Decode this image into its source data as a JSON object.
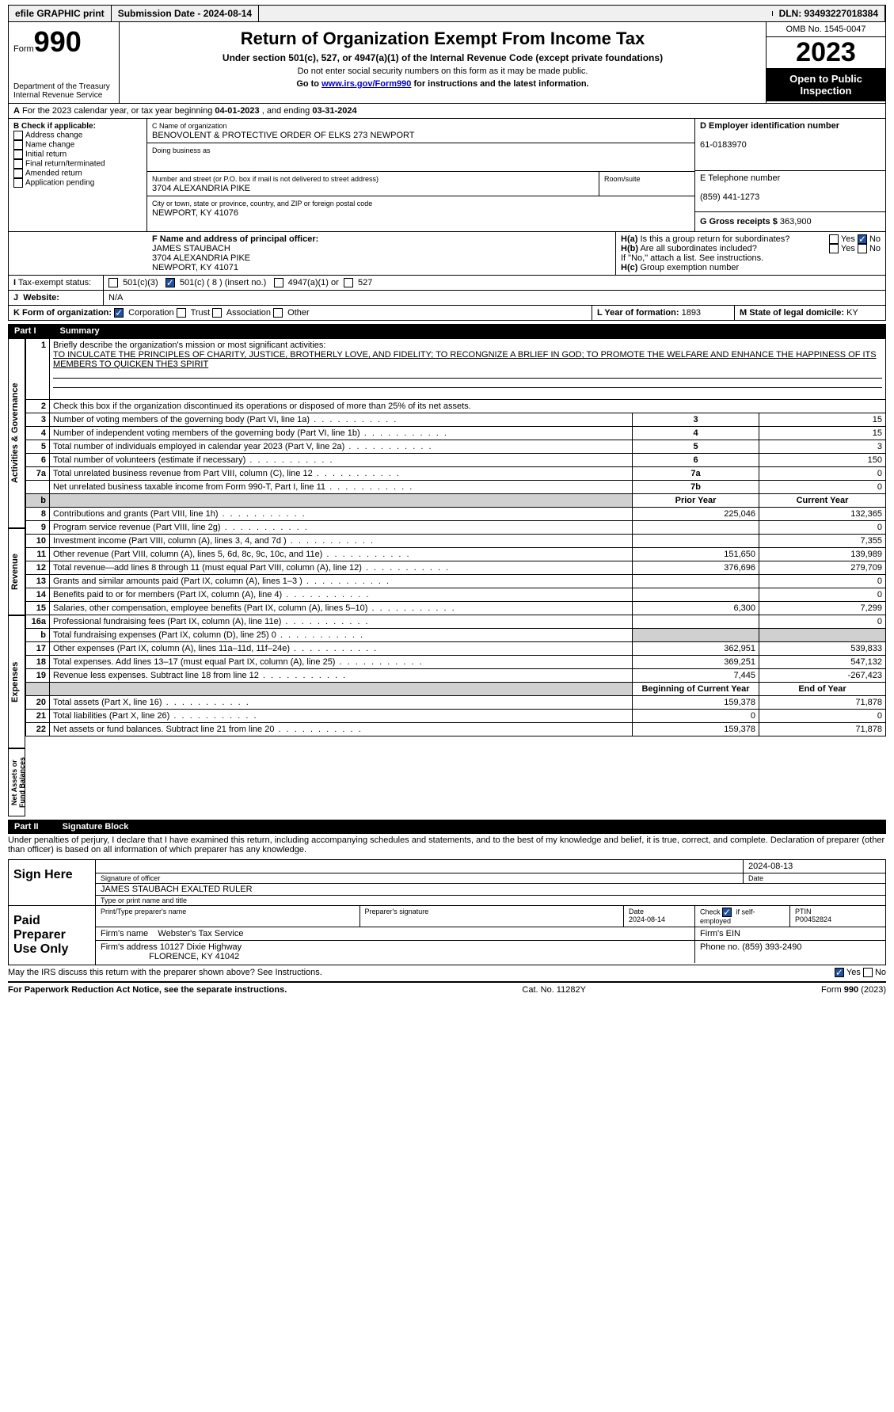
{
  "topbar": {
    "efile": "efile GRAPHIC print",
    "submission": "Submission Date - 2024-08-14",
    "dln": "DLN: 93493227018384"
  },
  "header": {
    "form_label": "Form",
    "form_num": "990",
    "title": "Return of Organization Exempt From Income Tax",
    "subtitle": "Under section 501(c), 527, or 4947(a)(1) of the Internal Revenue Code (except private foundations)",
    "hint1": "Do not enter social security numbers on this form as it may be made public.",
    "hint2_pre": "Go to ",
    "hint2_link": "www.irs.gov/Form990",
    "hint2_post": " for instructions and the latest information.",
    "dept": "Department of the Treasury\nInternal Revenue Service",
    "omb": "OMB No. 1545-0047",
    "year": "2023",
    "open": "Open to Public Inspection"
  },
  "lineA": {
    "text_pre": "For the 2023 calendar year, or tax year beginning ",
    "begin": "04-01-2023",
    "mid": " , and ending ",
    "end": "03-31-2024"
  },
  "boxB": {
    "label": "B Check if applicable:",
    "opts": [
      "Address change",
      "Name change",
      "Initial return",
      "Final return/terminated",
      "Amended return",
      "Application pending"
    ]
  },
  "boxC": {
    "name_lbl": "C Name of organization",
    "name": "BENOVOLENT & PROTECTIVE ORDER OF ELKS 273 NEWPORT",
    "dba_lbl": "Doing business as",
    "addr_lbl": "Number and street (or P.O. box if mail is not delivered to street address)",
    "room_lbl": "Room/suite",
    "addr": "3704 ALEXANDRIA PIKE",
    "city_lbl": "City or town, state or province, country, and ZIP or foreign postal code",
    "city": "NEWPORT, KY  41076"
  },
  "boxD": {
    "lbl": "D Employer identification number",
    "val": "61-0183970"
  },
  "boxE": {
    "lbl": "E Telephone number",
    "val": "(859) 441-1273"
  },
  "boxG": {
    "lbl": "G Gross receipts $",
    "val": "363,900"
  },
  "boxF": {
    "lbl": "F  Name and address of principal officer:",
    "name": "JAMES STAUBACH",
    "addr": "3704 ALEXANDRIA PIKE",
    "city": "NEWPORT, KY  41071"
  },
  "boxH": {
    "ha_lbl": "Is this a group return for subordinates?",
    "yes": "Yes",
    "no": "No",
    "hb_lbl": "Are all subordinates included?",
    "note": "If \"No,\" attach a list. See instructions.",
    "hc_lbl": "Group exemption number"
  },
  "lineI": {
    "lbl": "Tax-exempt status:",
    "o1": "501(c)(3)",
    "o2": "501(c) ( 8 ) (insert no.)",
    "o3": "4947(a)(1) or",
    "o4": "527"
  },
  "lineJ": {
    "lbl": "Website:",
    "val": "N/A"
  },
  "lineK": {
    "lbl": "K Form of organization:",
    "o1": "Corporation",
    "o2": "Trust",
    "o3": "Association",
    "o4": "Other"
  },
  "lineL": {
    "lbl": "L Year of formation:",
    "val": "1893"
  },
  "lineM": {
    "lbl": "M State of legal domicile:",
    "val": "KY"
  },
  "part1": {
    "num": "Part I",
    "title": "Summary"
  },
  "summary": {
    "side_labels": [
      "Activities & Governance",
      "Revenue",
      "Expenses",
      "Net Assets or Fund Balances"
    ],
    "q1": "Briefly describe the organization's mission or most significant activities:",
    "q1_ans": "TO INCULCATE THE PRINCIPLES OF CHARITY, JUSTICE, BROTHERLY LOVE, AND FIDELITY; TO RECONGNIZE A BRLIEF IN GOD; TO PROMOTE THE WELFARE AND ENHANCE THE HAPPINESS OF ITS MEMBERS TO QUICKEN THE3 SPIRIT",
    "q2": "Check this box       if the organization discontinued its operations or disposed of more than 25% of its net assets.",
    "rows_ag": [
      {
        "n": "3",
        "d": "Number of voting members of the governing body (Part VI, line 1a)",
        "b": "3",
        "v": "15"
      },
      {
        "n": "4",
        "d": "Number of independent voting members of the governing body (Part VI, line 1b)",
        "b": "4",
        "v": "15"
      },
      {
        "n": "5",
        "d": "Total number of individuals employed in calendar year 2023 (Part V, line 2a)",
        "b": "5",
        "v": "3"
      },
      {
        "n": "6",
        "d": "Total number of volunteers (estimate if necessary)",
        "b": "6",
        "v": "150"
      },
      {
        "n": "7a",
        "d": "Total unrelated business revenue from Part VIII, column (C), line 12",
        "b": "7a",
        "v": "0"
      },
      {
        "n": "",
        "d": "Net unrelated business taxable income from Form 990-T, Part I, line 11",
        "b": "7b",
        "v": "0"
      }
    ],
    "col_hdrs": {
      "py": "Prior Year",
      "cy": "Current Year",
      "boy": "Beginning of Current Year",
      "eoy": "End of Year"
    },
    "rows_rev": [
      {
        "n": "8",
        "d": "Contributions and grants (Part VIII, line 1h)",
        "py": "225,046",
        "cy": "132,365"
      },
      {
        "n": "9",
        "d": "Program service revenue (Part VIII, line 2g)",
        "py": "",
        "cy": "0"
      },
      {
        "n": "10",
        "d": "Investment income (Part VIII, column (A), lines 3, 4, and 7d )",
        "py": "",
        "cy": "7,355"
      },
      {
        "n": "11",
        "d": "Other revenue (Part VIII, column (A), lines 5, 6d, 8c, 9c, 10c, and 11e)",
        "py": "151,650",
        "cy": "139,989"
      },
      {
        "n": "12",
        "d": "Total revenue—add lines 8 through 11 (must equal Part VIII, column (A), line 12)",
        "py": "376,696",
        "cy": "279,709"
      }
    ],
    "rows_exp": [
      {
        "n": "13",
        "d": "Grants and similar amounts paid (Part IX, column (A), lines 1–3 )",
        "py": "",
        "cy": "0"
      },
      {
        "n": "14",
        "d": "Benefits paid to or for members (Part IX, column (A), line 4)",
        "py": "",
        "cy": "0"
      },
      {
        "n": "15",
        "d": "Salaries, other compensation, employee benefits (Part IX, column (A), lines 5–10)",
        "py": "6,300",
        "cy": "7,299"
      },
      {
        "n": "16a",
        "d": "Professional fundraising fees (Part IX, column (A), line 11e)",
        "py": "",
        "cy": "0"
      },
      {
        "n": "b",
        "d": "Total fundraising expenses (Part IX, column (D), line 25) 0",
        "py": "__grey__",
        "cy": "__grey__"
      },
      {
        "n": "17",
        "d": "Other expenses (Part IX, column (A), lines 11a–11d, 11f–24e)",
        "py": "362,951",
        "cy": "539,833"
      },
      {
        "n": "18",
        "d": "Total expenses. Add lines 13–17 (must equal Part IX, column (A), line 25)",
        "py": "369,251",
        "cy": "547,132"
      },
      {
        "n": "19",
        "d": "Revenue less expenses. Subtract line 18 from line 12",
        "py": "7,445",
        "cy": "-267,423"
      }
    ],
    "rows_net": [
      {
        "n": "20",
        "d": "Total assets (Part X, line 16)",
        "py": "159,378",
        "cy": "71,878"
      },
      {
        "n": "21",
        "d": "Total liabilities (Part X, line 26)",
        "py": "0",
        "cy": "0"
      },
      {
        "n": "22",
        "d": "Net assets or fund balances. Subtract line 21 from line 20",
        "py": "159,378",
        "cy": "71,878"
      }
    ]
  },
  "part2": {
    "num": "Part II",
    "title": "Signature Block"
  },
  "sig": {
    "decl": "Under penalties of perjury, I declare that I have examined this return, including accompanying schedules and statements, and to the best of my knowledge and belief, it is true, correct, and complete. Declaration of preparer (other than officer) is based on all information of which preparer has any knowledge.",
    "sign_here": "Sign Here",
    "sig_lbl": "Signature of officer",
    "date_lbl": "Date",
    "date1": "2024-08-13",
    "officer": "JAMES STAUBACH  EXALTED RULER",
    "type_lbl": "Type or print name and title",
    "paid": "Paid Preparer Use Only",
    "prep_name_lbl": "Print/Type preparer's name",
    "prep_sig_lbl": "Preparer's signature",
    "prep_date_lbl": "Date",
    "prep_date": "2024-08-14",
    "check_lbl": "Check        if self-employed",
    "ptin_lbl": "PTIN",
    "ptin": "P00452824",
    "firm_name_lbl": "Firm's name",
    "firm_name": "Webster's Tax Service",
    "firm_ein_lbl": "Firm's EIN",
    "firm_addr_lbl": "Firm's address",
    "firm_addr1": "10127 Dixie Highway",
    "firm_addr2": "FLORENCE, KY  41042",
    "phone_lbl": "Phone no.",
    "phone": "(859) 393-2490",
    "discuss": "May the IRS discuss this return with the preparer shown above? See Instructions."
  },
  "footer": {
    "l": "For Paperwork Reduction Act Notice, see the separate instructions.",
    "c": "Cat. No. 11282Y",
    "r": "Form 990 (2023)"
  }
}
